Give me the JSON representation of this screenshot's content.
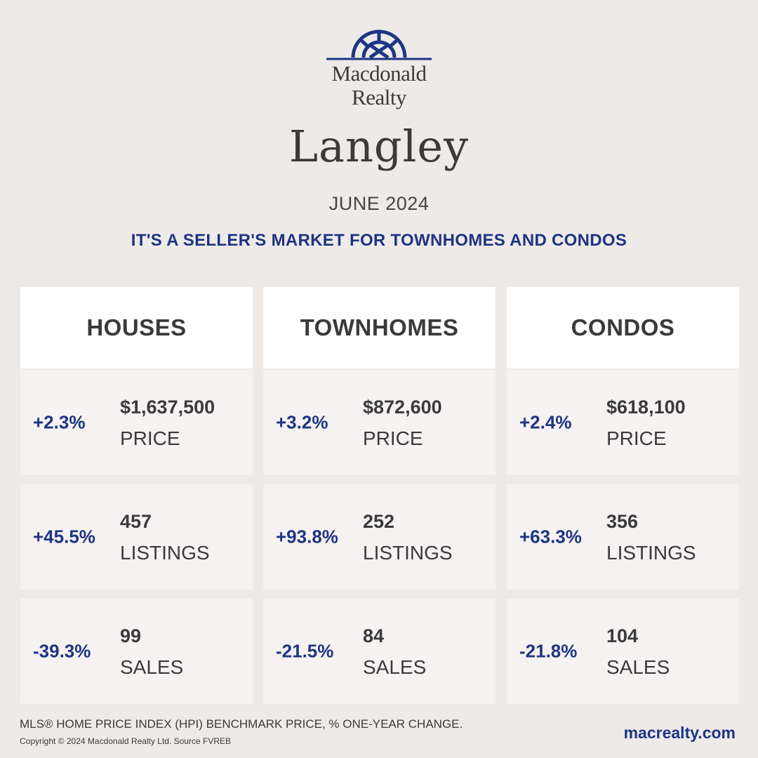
{
  "brand": {
    "logo_icon": "sunburst-arch-logo",
    "name_line1": "Macdonald",
    "name_line2": "Realty",
    "color": "#1d3583"
  },
  "city": "Langley",
  "month": "JUNE 2024",
  "headline": "IT'S A SELLER'S MARKET FOR TOWNHOMES AND CONDOS",
  "columns": [
    {
      "title": "HOUSES",
      "price": {
        "change": "+2.3%",
        "value": "$1,637,500",
        "label": "PRICE"
      },
      "listings": {
        "change": "+45.5%",
        "value": "457",
        "label": "LISTINGS"
      },
      "sales": {
        "change": "-39.3%",
        "value": "99",
        "label": "SALES"
      }
    },
    {
      "title": "TOWNHOMES",
      "price": {
        "change": "+3.2%",
        "value": "$872,600",
        "label": "PRICE"
      },
      "listings": {
        "change": "+93.8%",
        "value": "252",
        "label": "LISTINGS"
      },
      "sales": {
        "change": "-21.5%",
        "value": "84",
        "label": "SALES"
      }
    },
    {
      "title": "CONDOS",
      "price": {
        "change": "+2.4%",
        "value": "$618,100",
        "label": "PRICE"
      },
      "listings": {
        "change": "+63.3%",
        "value": "356",
        "label": "LISTINGS"
      },
      "sales": {
        "change": "-21.8%",
        "value": "104",
        "label": "SALES"
      }
    }
  ],
  "footer": {
    "note": "MLS® HOME PRICE INDEX (HPI) BENCHMARK PRICE, % ONE-YEAR CHANGE.",
    "copyright": "Copyright © 2024 Macdonald Realty Ltd. Source FVREB",
    "website": "macrealty.com"
  }
}
